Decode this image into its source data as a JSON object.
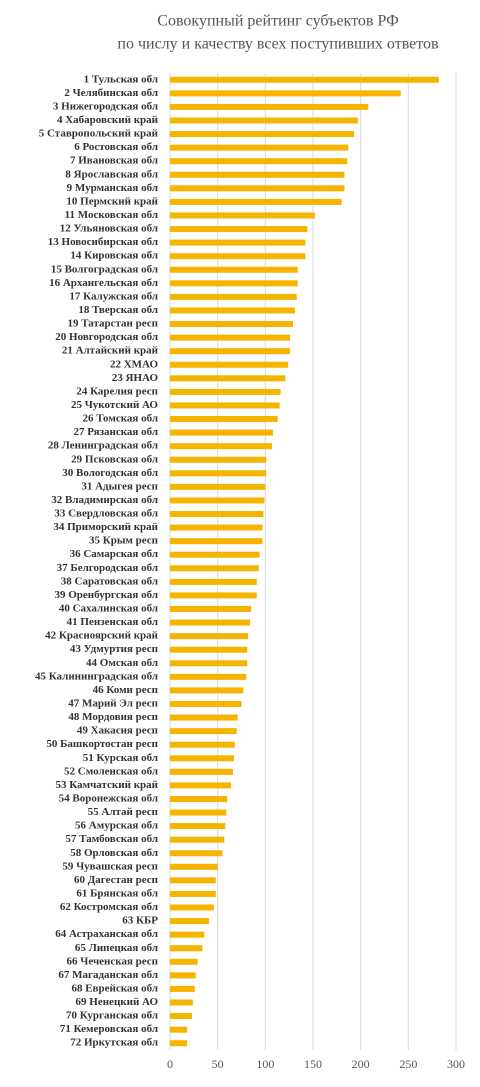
{
  "chart_data": {
    "type": "barh",
    "title": [
      "Совокупный рейтинг субъектов РФ",
      "по числу и качеству всех поступивших ответов"
    ],
    "categories": [
      "1 Тульская обл",
      "2 Челябинская обл",
      "3 Нижегородская обл",
      "4 Хабаровский край",
      "5 Ставропольский край",
      "6 Ростовская обл",
      "7 Ивановская обл",
      "8 Ярославская обл",
      "9 Мурманская обл",
      "10 Пермский край",
      "11 Московская обл",
      "12 Ульяновская обл",
      "13 Новосибирская обл",
      "14 Кировская обл",
      "15 Волгоградская обл",
      "16 Архангельская обл",
      "17 Калужская обл",
      "18 Тверская обл",
      "19 Татарстан респ",
      "20 Новгородская обл",
      "21 Алтайский край",
      "22 ХМАО",
      "23 ЯНАО",
      "24 Карелия респ",
      "25 Чукотский АО",
      "26 Томская обл",
      "27 Рязанская обл",
      "28 Ленинградская обл",
      "29 Псковская обл",
      "30 Вологодская обл",
      "31 Адыгея респ",
      "32 Владимирская обл",
      "33 Свердловская обл",
      "34 Приморский край",
      "35 Крым респ",
      "36 Самарская обл",
      "37 Белгородская обл",
      "38 Саратовская обл",
      "39 Оренбургская обл",
      "40 Сахалинская обл",
      "41 Пензенская обл",
      "42 Красноярский край",
      "43 Удмуртия респ",
      "44 Омская обл",
      "45 Калининградская обл",
      "46 Коми респ",
      "47 Марий Эл респ",
      "48 Мордовия респ",
      "49 Хакасия респ",
      "50 Башкортостан респ",
      "51 Курская обл",
      "52 Смоленская обл",
      "53 Камчатский край",
      "54 Воронежская обл",
      "55 Алтай респ",
      "56 Амурская обл",
      "57 Тамбовская обл",
      "58 Орловская обл",
      "59 Чувашская респ",
      "60 Дагестан респ",
      "61 Брянская обл",
      "62 Костромская обл",
      "63 КБР",
      "64 Астраханская обл",
      "65 Липецкая обл",
      "66 Чеченская респ",
      "67 Магаданская обл",
      "68 Еврейская обл",
      "69 Ненецкий АО",
      "70 Курганская обл",
      "71 Кемеровская обл",
      "72 Иркутская обл"
    ],
    "values": [
      282,
      242,
      208,
      197,
      193,
      187,
      186,
      183,
      183,
      180,
      152,
      144,
      142,
      142,
      134,
      134,
      133,
      131,
      129,
      126,
      126,
      124,
      121,
      116,
      115,
      113,
      108,
      107,
      101,
      101,
      100,
      99,
      98,
      97,
      97,
      94,
      93,
      91,
      91,
      85,
      84,
      82,
      81,
      81,
      80,
      77,
      75,
      71,
      70,
      68,
      67,
      66,
      64,
      60,
      59,
      58,
      57,
      55,
      50,
      48,
      48,
      46,
      41,
      36,
      34,
      29,
      27,
      26,
      24,
      23,
      18,
      18
    ],
    "color": "#f5b400",
    "xlim": [
      0,
      300
    ],
    "xticks": [
      0,
      50,
      100,
      150,
      200,
      250,
      300
    ],
    "grid": true
  }
}
